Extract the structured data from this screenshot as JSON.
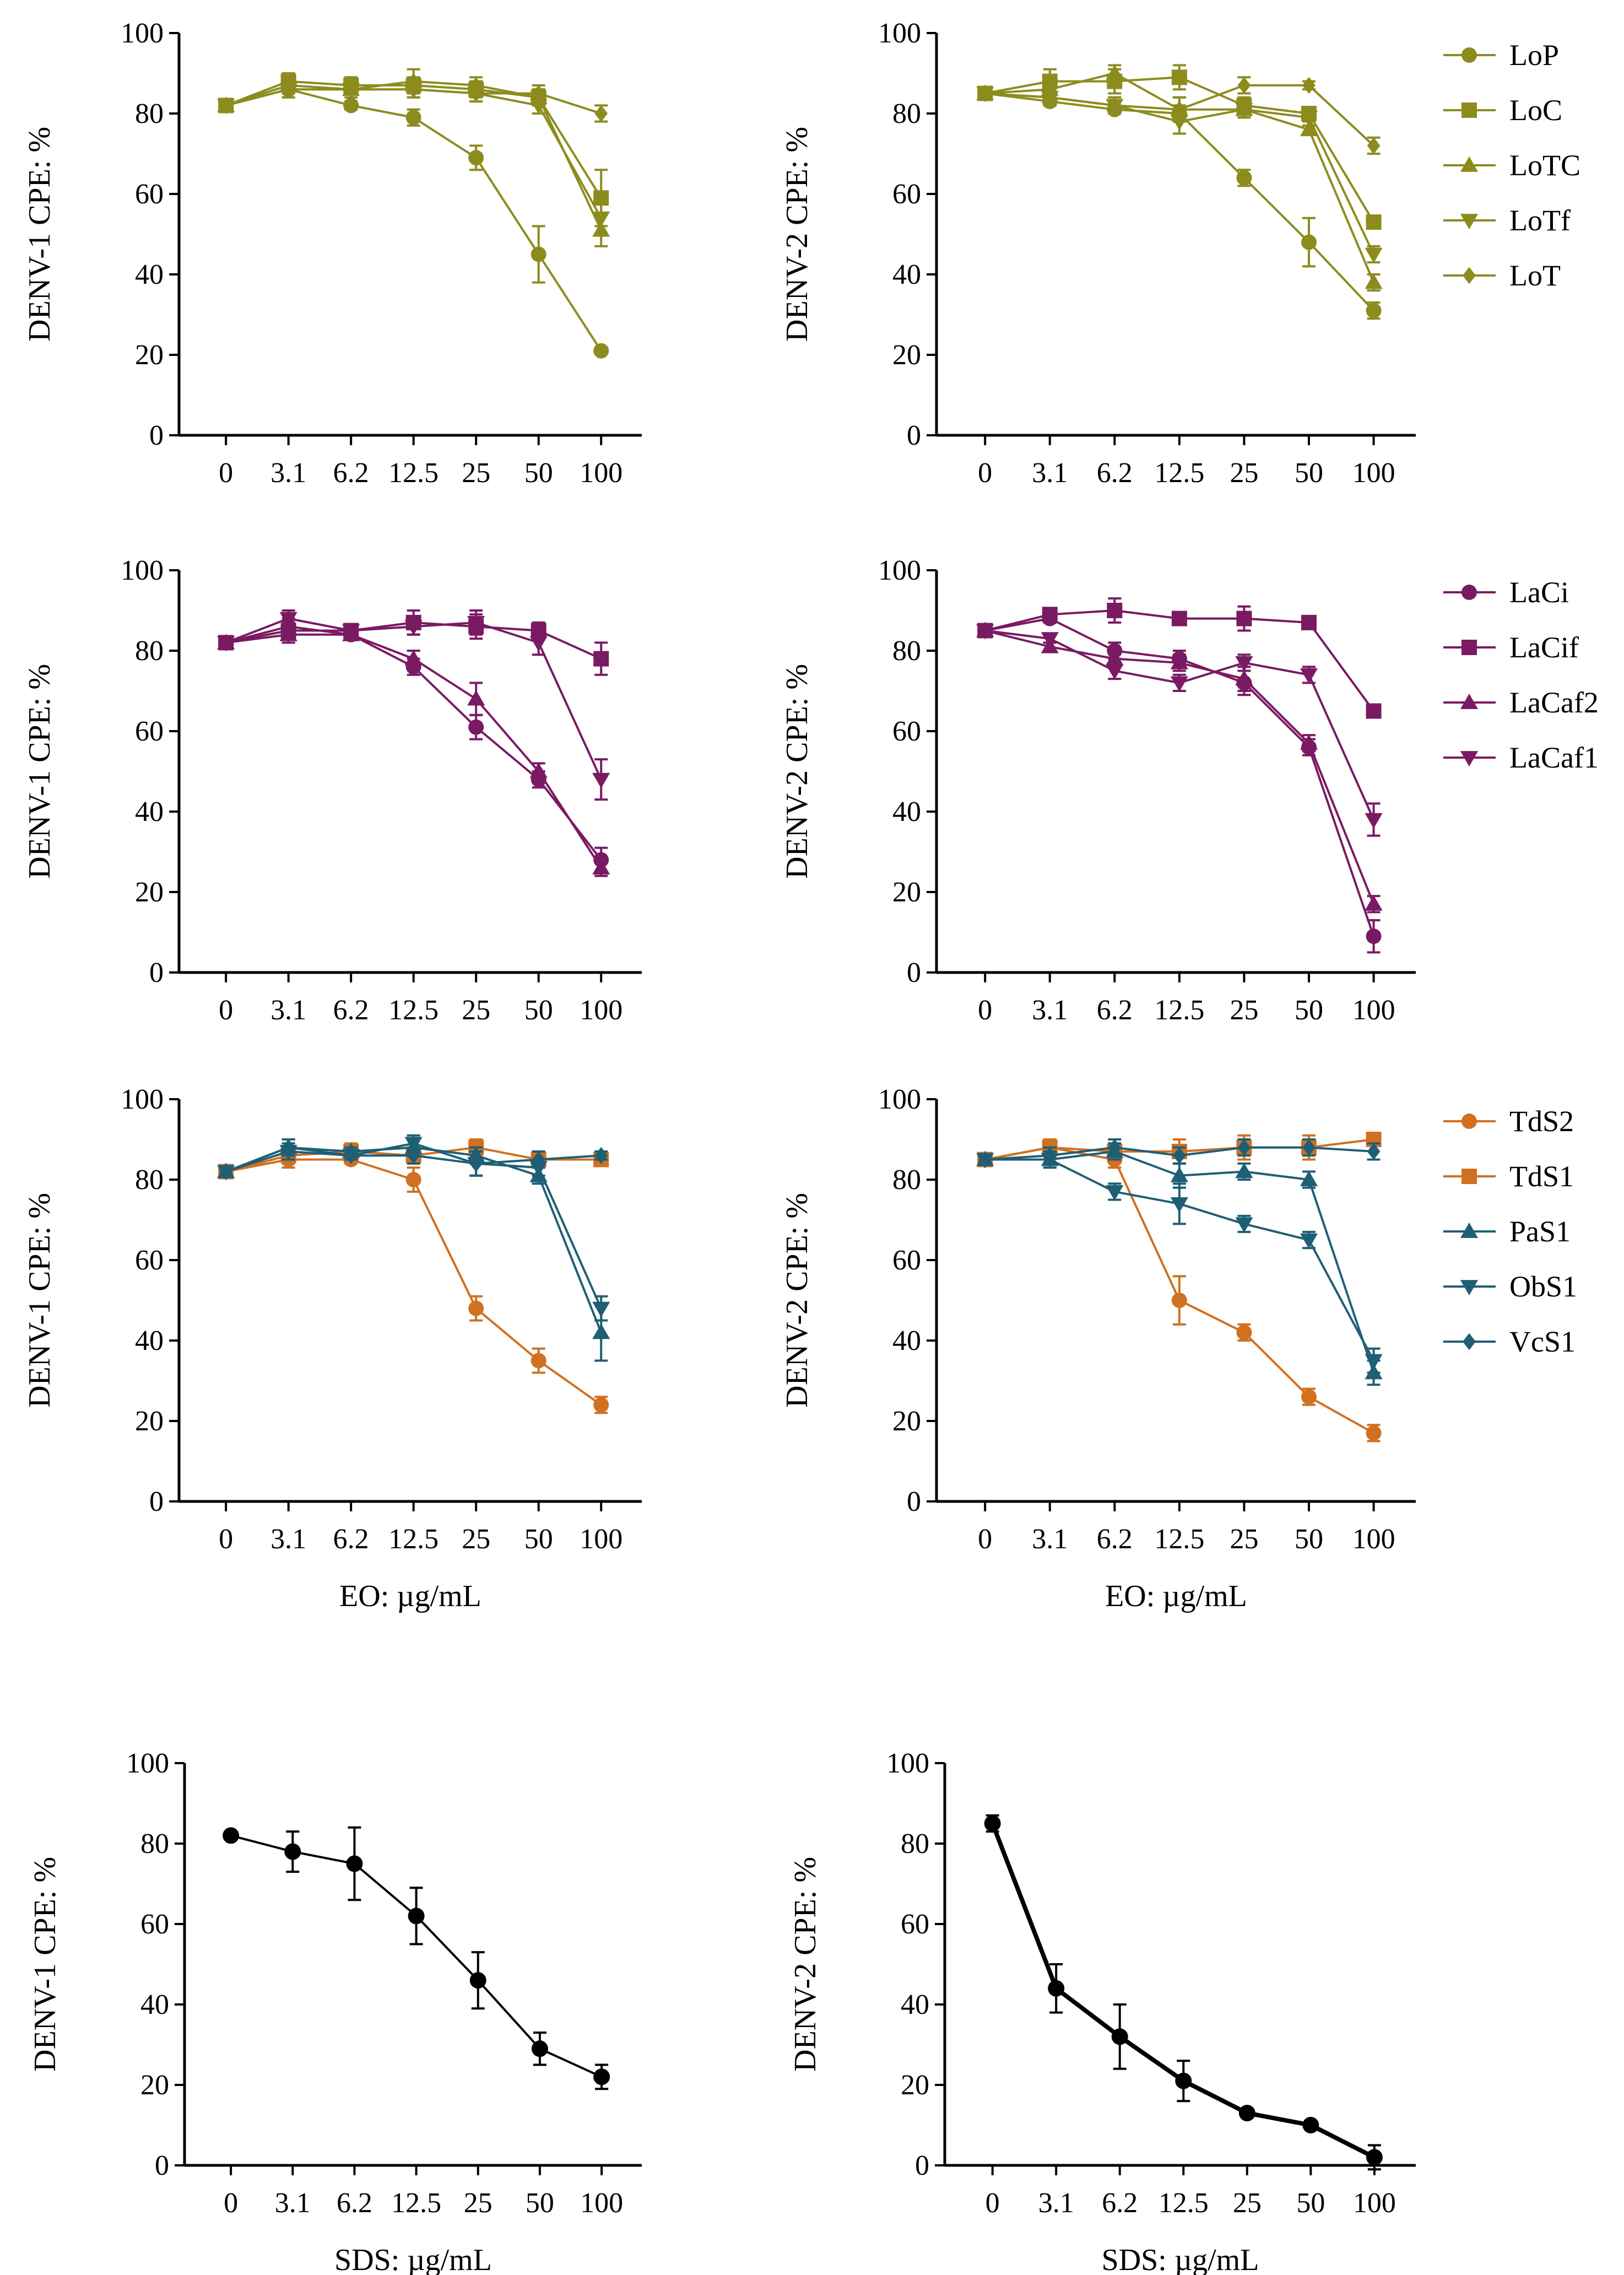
{
  "chart_data": [
    {
      "id": "denv1-lo",
      "type": "line",
      "ylabel": "DENV-1 CPE: %",
      "xlabel": "",
      "categories": [
        "0",
        "3.1",
        "6.2",
        "12.5",
        "25",
        "50",
        "100"
      ],
      "ylim": [
        0,
        100
      ],
      "yticks": [
        "0",
        "20",
        "40",
        "60",
        "80",
        "100"
      ],
      "series": [
        {
          "name": "LoP",
          "marker": "circle",
          "values": [
            82,
            86,
            82,
            79,
            69,
            45,
            21
          ],
          "errors": [
            0,
            1,
            1,
            2,
            3,
            7,
            0
          ]
        },
        {
          "name": "LoC",
          "marker": "square",
          "values": [
            82,
            88,
            87,
            87,
            86,
            84,
            59
          ],
          "errors": [
            0,
            2,
            2,
            2,
            2,
            2,
            7
          ]
        },
        {
          "name": "LoTC",
          "marker": "triangle-up",
          "values": [
            82,
            87,
            86,
            88,
            87,
            84,
            51
          ],
          "errors": [
            0,
            2,
            2,
            3,
            2,
            2,
            4
          ]
        },
        {
          "name": "LoTf",
          "marker": "triangle-down",
          "values": [
            82,
            86,
            86,
            86,
            85,
            82,
            54
          ],
          "errors": [
            0,
            2,
            1,
            2,
            2,
            2,
            4
          ]
        },
        {
          "name": "LoT",
          "marker": "diamond",
          "values": [
            82,
            86,
            86,
            86,
            85,
            85,
            80
          ],
          "errors": [
            0,
            2,
            1,
            2,
            2,
            2,
            2
          ]
        }
      ],
      "legend": false
    },
    {
      "id": "denv2-lo",
      "type": "line",
      "ylabel": "DENV-2 CPE: %",
      "xlabel": "",
      "categories": [
        "0",
        "3.1",
        "6.2",
        "12.5",
        "25",
        "50",
        "100"
      ],
      "ylim": [
        0,
        100
      ],
      "yticks": [
        "0",
        "20",
        "40",
        "60",
        "80",
        "100"
      ],
      "series": [
        {
          "name": "LoP",
          "marker": "circle",
          "values": [
            85,
            83,
            81,
            80,
            64,
            48,
            31
          ],
          "errors": [
            0,
            1,
            1,
            2,
            2,
            6,
            2
          ]
        },
        {
          "name": "LoC",
          "marker": "square",
          "values": [
            85,
            88,
            88,
            89,
            82,
            80,
            53
          ],
          "errors": [
            0,
            3,
            3,
            3,
            2,
            1,
            1
          ]
        },
        {
          "name": "LoTC",
          "marker": "triangle-up",
          "values": [
            85,
            86,
            90,
            81,
            81,
            76,
            38
          ],
          "errors": [
            0,
            2,
            2,
            3,
            2,
            1,
            2
          ]
        },
        {
          "name": "LoTf",
          "marker": "triangle-down",
          "values": [
            85,
            84,
            82,
            78,
            81,
            79,
            45
          ],
          "errors": [
            0,
            2,
            2,
            3,
            2,
            1,
            2
          ]
        },
        {
          "name": "LoT",
          "marker": "diamond",
          "values": [
            85,
            84,
            82,
            81,
            87,
            87,
            72
          ],
          "errors": [
            0,
            2,
            2,
            3,
            2,
            1,
            2
          ]
        }
      ],
      "legend": true
    },
    {
      "id": "denv1-la",
      "type": "line",
      "ylabel": "DENV-1 CPE: %",
      "xlabel": "",
      "categories": [
        "0",
        "3.1",
        "6.2",
        "12.5",
        "25",
        "50",
        "100"
      ],
      "ylim": [
        0,
        100
      ],
      "yticks": [
        "0",
        "20",
        "40",
        "60",
        "80",
        "100"
      ],
      "series": [
        {
          "name": "LaCi",
          "marker": "circle",
          "values": [
            82,
            86,
            84,
            76,
            61,
            48,
            28
          ],
          "errors": [
            0,
            2,
            1,
            2,
            3,
            2,
            3
          ]
        },
        {
          "name": "LaCif",
          "marker": "square",
          "values": [
            82,
            85,
            85,
            87,
            86,
            85,
            78
          ],
          "errors": [
            0,
            2,
            1,
            3,
            3,
            2,
            4
          ]
        },
        {
          "name": "LaCaf2",
          "marker": "triangle-up",
          "values": [
            82,
            84,
            84,
            78,
            68,
            50,
            26
          ],
          "errors": [
            0,
            2,
            1,
            2,
            4,
            2,
            2
          ]
        },
        {
          "name": "LaCaf1",
          "marker": "triangle-down",
          "values": [
            82,
            88,
            85,
            86,
            87,
            82,
            48
          ],
          "errors": [
            0,
            2,
            1,
            2,
            3,
            3,
            5
          ]
        }
      ],
      "legend": false
    },
    {
      "id": "denv2-la",
      "type": "line",
      "ylabel": "DENV-2 CPE: %",
      "xlabel": "",
      "categories": [
        "0",
        "3.1",
        "6.2",
        "12.5",
        "25",
        "50",
        "100"
      ],
      "ylim": [
        0,
        100
      ],
      "yticks": [
        "0",
        "20",
        "40",
        "60",
        "80",
        "100"
      ],
      "series": [
        {
          "name": "LaCi",
          "marker": "circle",
          "values": [
            85,
            88,
            80,
            78,
            72,
            56,
            9
          ],
          "errors": [
            0,
            1,
            2,
            2,
            3,
            2,
            4
          ]
        },
        {
          "name": "LaCif",
          "marker": "square",
          "values": [
            85,
            89,
            90,
            88,
            88,
            87,
            65
          ],
          "errors": [
            0,
            1,
            3,
            1,
            3,
            1,
            1
          ]
        },
        {
          "name": "LaCaf2",
          "marker": "triangle-up",
          "values": [
            85,
            81,
            78,
            77,
            73,
            57,
            17
          ],
          "errors": [
            0,
            1,
            2,
            2,
            3,
            2,
            2
          ]
        },
        {
          "name": "LaCaf1",
          "marker": "triangle-down",
          "values": [
            85,
            83,
            75,
            72,
            77,
            74,
            38
          ],
          "errors": [
            0,
            1,
            2,
            2,
            2,
            2,
            4
          ]
        }
      ],
      "legend": true
    },
    {
      "id": "denv1-s",
      "type": "line",
      "ylabel": "DENV-1 CPE: %",
      "xlabel": "EO: µg/mL",
      "categories": [
        "0",
        "3.1",
        "6.2",
        "12.5",
        "25",
        "50",
        "100"
      ],
      "ylim": [
        0,
        100
      ],
      "yticks": [
        "0",
        "20",
        "40",
        "60",
        "80",
        "100"
      ],
      "series": [
        {
          "name": "TdS2",
          "marker": "circle",
          "values": [
            82,
            85,
            85,
            80,
            48,
            35,
            24
          ],
          "errors": [
            0,
            2,
            1,
            3,
            3,
            3,
            2
          ]
        },
        {
          "name": "TdS1",
          "marker": "square",
          "values": [
            82,
            86,
            87,
            86,
            88,
            85,
            85
          ],
          "errors": [
            0,
            2,
            2,
            2,
            2,
            2,
            1
          ]
        },
        {
          "name": "PaS1",
          "marker": "triangle-up",
          "values": [
            82,
            88,
            87,
            88,
            86,
            81,
            42
          ],
          "errors": [
            0,
            2,
            1,
            2,
            2,
            2,
            7
          ]
        },
        {
          "name": "ObS1",
          "marker": "triangle-down",
          "values": [
            82,
            87,
            86,
            89,
            84,
            83,
            48
          ],
          "errors": [
            0,
            2,
            1,
            2,
            3,
            2,
            3
          ]
        },
        {
          "name": "VcS1",
          "marker": "diamond",
          "values": [
            82,
            88,
            86,
            86,
            84,
            85,
            86
          ],
          "errors": [
            0,
            2,
            1,
            2,
            3,
            2,
            1
          ]
        }
      ],
      "legend": false
    },
    {
      "id": "denv2-s",
      "type": "line",
      "ylabel": "DENV-2 CPE: %",
      "xlabel": "EO: µg/mL",
      "categories": [
        "0",
        "3.1",
        "6.2",
        "12.5",
        "25",
        "50",
        "100"
      ],
      "ylim": [
        0,
        100
      ],
      "yticks": [
        "0",
        "20",
        "40",
        "60",
        "80",
        "100"
      ],
      "series": [
        {
          "name": "TdS2",
          "marker": "circle",
          "values": [
            85,
            88,
            85,
            50,
            42,
            26,
            17
          ],
          "errors": [
            0,
            2,
            2,
            6,
            2,
            2,
            2
          ]
        },
        {
          "name": "TdS1",
          "marker": "square",
          "values": [
            85,
            88,
            87,
            87,
            88,
            88,
            90
          ],
          "errors": [
            0,
            2,
            2,
            3,
            3,
            3,
            1
          ]
        },
        {
          "name": "PaS1",
          "marker": "triangle-up",
          "values": [
            85,
            85,
            87,
            81,
            82,
            80,
            32
          ],
          "errors": [
            0,
            2,
            2,
            3,
            2,
            2,
            3
          ]
        },
        {
          "name": "ObS1",
          "marker": "triangle-down",
          "values": [
            85,
            85,
            77,
            74,
            69,
            65,
            35
          ],
          "errors": [
            0,
            2,
            2,
            5,
            2,
            2,
            3
          ]
        },
        {
          "name": "VcS1",
          "marker": "diamond",
          "values": [
            85,
            86,
            88,
            86,
            88,
            88,
            87
          ],
          "errors": [
            0,
            2,
            2,
            2,
            2,
            2,
            2
          ]
        }
      ],
      "legend": true
    },
    {
      "id": "denv1-sds",
      "type": "line",
      "ylabel": "DENV-1 CPE: %",
      "xlabel": "SDS: µg/mL",
      "categories": [
        "0",
        "3.1",
        "6.2",
        "12.5",
        "25",
        "50",
        "100"
      ],
      "ylim": [
        0,
        100
      ],
      "yticks": [
        "0",
        "20",
        "40",
        "60",
        "80",
        "100"
      ],
      "series": [
        {
          "name": "SDS",
          "marker": "circle",
          "values": [
            82,
            78,
            75,
            62,
            46,
            29,
            22
          ],
          "errors": [
            0,
            5,
            9,
            7,
            7,
            4,
            3
          ]
        }
      ],
      "legend": false
    },
    {
      "id": "denv2-sds",
      "type": "line",
      "ylabel": "DENV-2 CPE: %",
      "xlabel": "SDS: µg/mL",
      "categories": [
        "0",
        "3.1",
        "6.2",
        "12.5",
        "25",
        "50",
        "100"
      ],
      "ylim": [
        0,
        100
      ],
      "yticks": [
        "0",
        "20",
        "40",
        "60",
        "80",
        "100"
      ],
      "series": [
        {
          "name": "SDS",
          "marker": "circle",
          "values": [
            85,
            44,
            32,
            21,
            13,
            10,
            2
          ],
          "errors": [
            2,
            6,
            8,
            5,
            1,
            1,
            3
          ]
        }
      ],
      "legend": false
    }
  ],
  "colors": {
    "olive": "#8c8c1e",
    "purple": "#7a1a63",
    "orange": "#d07020",
    "teal": "#1f5f75",
    "black": "#000000",
    "axis": "#000000"
  },
  "series_colors": {
    "LoP": "#8c8c1e",
    "LoC": "#8c8c1e",
    "LoTC": "#8c8c1e",
    "LoTf": "#8c8c1e",
    "LoT": "#8c8c1e",
    "LaCi": "#7a1a63",
    "LaCif": "#7a1a63",
    "LaCaf2": "#7a1a63",
    "LaCaf1": "#7a1a63",
    "TdS2": "#d07020",
    "TdS1": "#d07020",
    "PaS1": "#1f5f75",
    "ObS1": "#1f5f75",
    "VcS1": "#1f5f75",
    "SDS": "#000000"
  }
}
